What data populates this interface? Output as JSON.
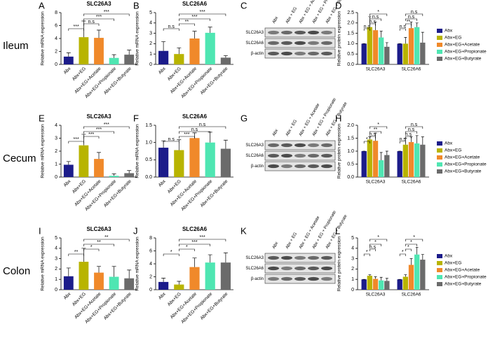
{
  "row_labels": [
    "Ileum",
    "Cecum",
    "Colon"
  ],
  "blots": [
    {
      "panel": "C",
      "lanes": [
        "Abx",
        "Abx + EG",
        "Abx + EG + Acetate",
        "Abx + EG + Propionate",
        "Abx + EG + Butyrate"
      ],
      "rows": [
        "SLC26A3",
        "SLC26A6",
        "β-actin"
      ]
    },
    {
      "panel": "G",
      "lanes": [
        "Abx",
        "Abx + EG",
        "Abx + EG + Acetate",
        "Abx + EG + Propionate",
        "Abx + EG + Butyrate"
      ],
      "rows": [
        "SLC26A3",
        "SLC26A6",
        "β-actin"
      ]
    },
    {
      "panel": "K",
      "lanes": [
        "Abx",
        "Abx + EG",
        "Abx + EG + Acetate",
        "Abx + EG + Propionate",
        "Abx + EG + Butyrate"
      ],
      "rows": [
        "SLC26A3",
        "SLC26A6",
        "β-actin"
      ]
    }
  ],
  "chart_data": [
    {
      "type": "bar",
      "panel": "A",
      "title": "SLC26A3",
      "ylabel": "Relative mRNA expression",
      "categories": [
        "Abx",
        "Abx+EG",
        "Abx+EG+Acetate",
        "Abx+EG+Propionate",
        "Abx+EG+Butyrate"
      ],
      "values": [
        1.2,
        4.2,
        4.1,
        1.0,
        1.5
      ],
      "errors": [
        0.6,
        2.5,
        1.2,
        0.5,
        0.7
      ],
      "colors": [
        "#1c1c8a",
        "#b8b400",
        "#f0892a",
        "#4fe6b2",
        "#6b6b6b"
      ],
      "ylim": [
        0,
        8
      ],
      "yticks": [
        0,
        2,
        4,
        6,
        8
      ],
      "annotations": [
        "***",
        "n.s",
        "***",
        "***"
      ]
    },
    {
      "type": "bar",
      "panel": "B",
      "title": "SLC26A6",
      "ylabel": "Relative mRNA expression",
      "categories": [
        "Abx",
        "Abx+EG",
        "Abx+EG+Acetate",
        "Abx+EG+Propionate",
        "Abx+EG+Butyrate"
      ],
      "values": [
        1.3,
        1.0,
        2.5,
        3.05,
        0.65
      ],
      "errors": [
        0.9,
        0.6,
        0.7,
        0.55,
        0.2
      ],
      "colors": [
        "#1c1c8a",
        "#b8b400",
        "#f0892a",
        "#4fe6b2",
        "#6b6b6b"
      ],
      "ylim": [
        0,
        5
      ],
      "yticks": [
        0,
        1,
        2,
        3,
        4,
        5
      ],
      "annotations": [
        "n.s",
        "**",
        "***",
        "***"
      ]
    },
    {
      "type": "grouped_bar",
      "panel": "D",
      "ylabel": "Relative protein expression",
      "categories": [
        "SLC26A3",
        "SLC26A6"
      ],
      "series": [
        {
          "name": "Abx",
          "color": "#1c1c8a",
          "values": [
            1.0,
            1.0
          ],
          "errors": [
            0.0,
            0.0
          ]
        },
        {
          "name": "Abx+EG",
          "color": "#b8b400",
          "values": [
            1.8,
            1.0
          ],
          "errors": [
            0.5,
            0.3
          ]
        },
        {
          "name": "Abx+EG+Acetate",
          "color": "#f0892a",
          "values": [
            1.65,
            1.75
          ],
          "errors": [
            0.4,
            0.3
          ]
        },
        {
          "name": "Abx+EG+Propionate",
          "color": "#4fe6b2",
          "values": [
            1.3,
            1.8
          ],
          "errors": [
            0.3,
            0.2
          ]
        },
        {
          "name": "Abx+EG+Butyrate",
          "color": "#6b6b6b",
          "values": [
            0.85,
            1.05
          ],
          "errors": [
            0.2,
            0.5
          ]
        }
      ],
      "ylim": [
        0,
        2.5
      ],
      "yticks": [
        {
          "value": 0,
          "label": "0.0"
        },
        0.5,
        {
          "value": 1,
          "label": "1.0"
        },
        1.5,
        {
          "value": 2,
          "label": "2.0"
        },
        2.5
      ],
      "annotations": [
        "n.s",
        "n.s",
        "n.s",
        "*",
        "n.s",
        "**",
        "n.s",
        "n.s"
      ]
    },
    {
      "type": "bar",
      "panel": "E",
      "title": "SLC26A3",
      "ylabel": "Relative mRNA expression",
      "categories": [
        "Abx",
        "Abx+EG",
        "Abx+EG+Acetate",
        "Abx+EG+Propionate",
        "Abx+EG+Butyrate"
      ],
      "values": [
        0.95,
        2.45,
        1.4,
        0.1,
        0.3
      ],
      "errors": [
        0.25,
        0.85,
        0.5,
        0.15,
        0.2
      ],
      "colors": [
        "#1c1c8a",
        "#b8b400",
        "#f0892a",
        "#4fe6b2",
        "#6b6b6b"
      ],
      "ylim": [
        0,
        4
      ],
      "yticks": [
        0,
        1,
        2,
        3,
        4
      ],
      "annotations": [
        "***",
        "***",
        "***",
        "***"
      ]
    },
    {
      "type": "bar",
      "panel": "F",
      "title": "SLC26A6",
      "ylabel": "Relative mRNA expression",
      "categories": [
        "Abx",
        "Abx+EG",
        "Abx+EG+Acetate",
        "Abx+EG+Propionate",
        "Abx+EG+Butyrate"
      ],
      "values": [
        0.85,
        0.78,
        1.13,
        1.0,
        0.82
      ],
      "errors": [
        0.2,
        0.3,
        0.15,
        0.3,
        0.25
      ],
      "colors": [
        "#1c1c8a",
        "#b8b400",
        "#f0892a",
        "#4fe6b2",
        "#6b6b6b"
      ],
      "ylim": [
        0,
        1.5
      ],
      "yticks": [
        {
          "value": 0,
          "label": "0.0"
        },
        0.5,
        {
          "value": 1,
          "label": "1.0"
        },
        1.5
      ],
      "annotations": [
        "n.s",
        "***",
        "n.s",
        "n.s"
      ]
    },
    {
      "type": "grouped_bar",
      "panel": "H",
      "ylabel": "Relative protein expression",
      "categories": [
        "SLC26A3",
        "SLC26A6"
      ],
      "series": [
        {
          "name": "Abx",
          "color": "#1c1c8a",
          "values": [
            1.0,
            1.0
          ],
          "errors": [
            0.0,
            0.0
          ]
        },
        {
          "name": "Abx+EG",
          "color": "#b8b400",
          "values": [
            1.45,
            1.25
          ],
          "errors": [
            0.1,
            0.25
          ]
        },
        {
          "name": "Abx+EG+Acetate",
          "color": "#f0892a",
          "values": [
            1.4,
            1.35
          ],
          "errors": [
            0.3,
            0.2
          ]
        },
        {
          "name": "Abx+EG+Propionate",
          "color": "#4fe6b2",
          "values": [
            0.65,
            1.3
          ],
          "errors": [
            0.3,
            0.3
          ]
        },
        {
          "name": "Abx+EG+Butyrate",
          "color": "#6b6b6b",
          "values": [
            0.85,
            1.25
          ],
          "errors": [
            0.15,
            0.3
          ]
        }
      ],
      "ylim": [
        0,
        2
      ],
      "yticks": [
        {
          "value": 0,
          "label": "0.0"
        },
        0.5,
        {
          "value": 1,
          "label": "1.0"
        },
        1.5,
        {
          "value": 2,
          "label": "2.0"
        }
      ],
      "annotations": [
        "*",
        "n.s",
        "**",
        "*",
        "n.s",
        "n.s",
        "n.s",
        "n.s"
      ]
    },
    {
      "type": "bar",
      "panel": "I",
      "title": "SLC26A3",
      "ylabel": "Relative mRNA expression",
      "categories": [
        "Abx",
        "Abx+EG",
        "Abx+EG+Acetate",
        "Abx+EG+Propionate",
        "Abx+EG+Butyrate"
      ],
      "values": [
        1.3,
        2.7,
        1.65,
        1.25,
        1.1
      ],
      "errors": [
        0.8,
        1.3,
        0.6,
        1.0,
        0.8
      ],
      "colors": [
        "#1c1c8a",
        "#b8b400",
        "#f0892a",
        "#4fe6b2",
        "#6b6b6b"
      ],
      "ylim": [
        0,
        5
      ],
      "yticks": [
        0,
        1,
        2,
        3,
        4,
        5
      ],
      "annotations": [
        "**",
        "*",
        "**",
        "**"
      ]
    },
    {
      "type": "bar",
      "panel": "J",
      "title": "SLC26A6",
      "ylabel": "Relative mRNA expression",
      "categories": [
        "Abx",
        "Abx+EG",
        "Abx+EG+Acetate",
        "Abx+EG+Propionate",
        "Abx+EG+Butyrate"
      ],
      "values": [
        1.2,
        0.8,
        3.5,
        4.2,
        4.2
      ],
      "errors": [
        0.6,
        0.5,
        1.4,
        1.2,
        1.5
      ],
      "colors": [
        "#1c1c8a",
        "#b8b400",
        "#f0892a",
        "#4fe6b2",
        "#6b6b6b"
      ],
      "ylim": [
        0,
        8
      ],
      "yticks": [
        0,
        2,
        4,
        6,
        8
      ],
      "annotations": [
        "*",
        "*",
        "***",
        "***"
      ]
    },
    {
      "type": "grouped_bar",
      "panel": "L",
      "ylabel": "Relative protein expression",
      "categories": [
        "SLC26A3",
        "SLC26A6"
      ],
      "series": [
        {
          "name": "Abx",
          "color": "#1c1c8a",
          "values": [
            1.0,
            1.0
          ],
          "errors": [
            0.0,
            0.0
          ]
        },
        {
          "name": "Abx+EG",
          "color": "#b8b400",
          "values": [
            1.35,
            1.25
          ],
          "errors": [
            0.1,
            0.2
          ]
        },
        {
          "name": "Abx+EG+Acetate",
          "color": "#f0892a",
          "values": [
            1.05,
            2.4
          ],
          "errors": [
            0.2,
            0.6
          ]
        },
        {
          "name": "Abx+EG+Propionate",
          "color": "#4fe6b2",
          "values": [
            0.9,
            3.4
          ],
          "errors": [
            0.3,
            0.7
          ]
        },
        {
          "name": "Abx+EG+Butyrate",
          "color": "#6b6b6b",
          "values": [
            0.85,
            2.9
          ],
          "errors": [
            0.25,
            0.5
          ]
        }
      ],
      "ylim": [
        0,
        5
      ],
      "yticks": [
        0,
        1,
        2,
        3,
        4,
        5
      ],
      "annotations": [
        "*",
        "n.s",
        "*",
        "*",
        "*",
        "*",
        "*",
        "*"
      ]
    }
  ]
}
